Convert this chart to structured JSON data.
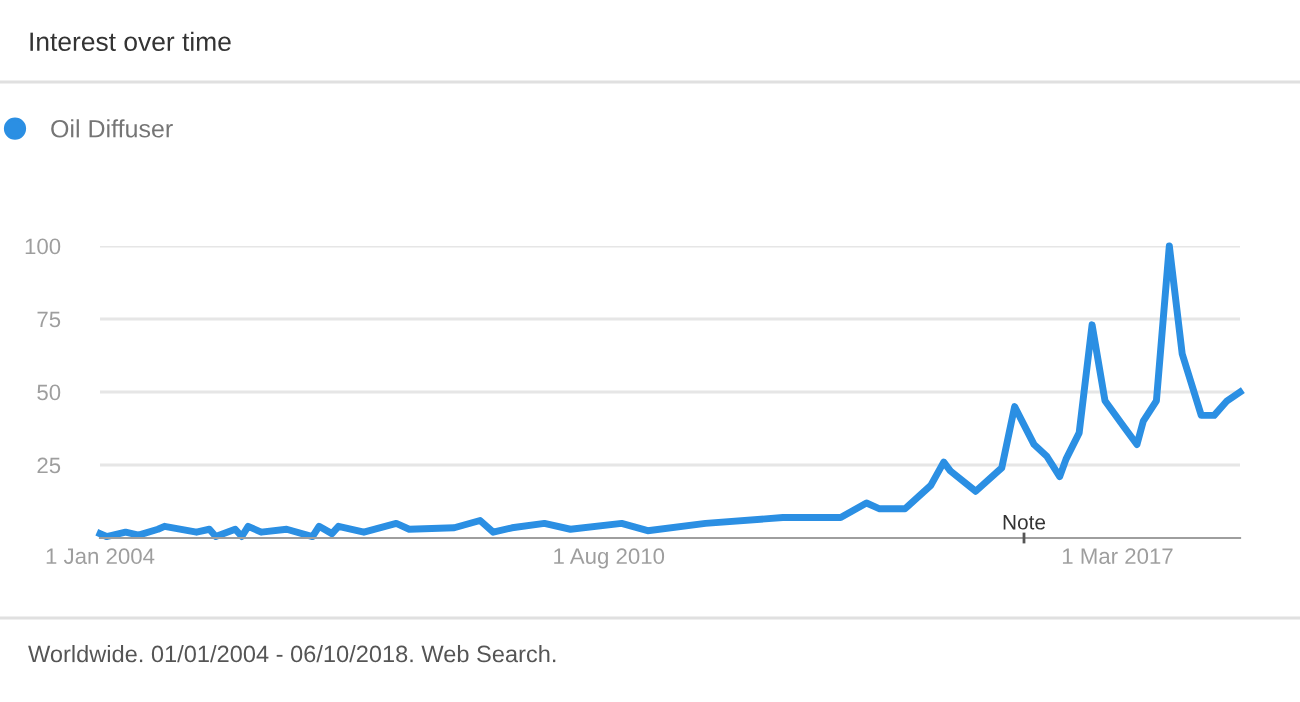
{
  "chart_data": {
    "type": "line",
    "title": "Interest over time",
    "x": [
      "2004-01",
      "2004-02",
      "2004-05",
      "2004-07",
      "2004-10",
      "2004-11",
      "2005-04",
      "2005-06",
      "2005-07",
      "2005-10",
      "2005-11",
      "2005-12",
      "2006-02",
      "2006-06",
      "2006-10",
      "2006-11",
      "2007-01",
      "2007-02",
      "2007-06",
      "2007-11",
      "2008-01",
      "2008-08",
      "2008-12",
      "2009-02",
      "2009-05",
      "2009-10",
      "2010-02",
      "2010-10",
      "2011-02",
      "2011-11",
      "2012-11",
      "2013-08",
      "2013-12",
      "2014-02",
      "2014-06",
      "2014-10",
      "2014-12",
      "2015-01",
      "2015-05",
      "2015-09",
      "2015-11",
      "2016-02",
      "2016-04",
      "2016-06",
      "2016-07",
      "2016-09",
      "2016-11",
      "2017-01",
      "2017-04",
      "2017-06",
      "2017-07",
      "2017-09",
      "2017-11",
      "2018-01",
      "2018-04",
      "2018-06",
      "2018-08",
      "2018-10"
    ],
    "series": [
      {
        "name": "Oil Diffuser",
        "color": "#2b8fe3",
        "values": [
          1.5,
          0.5,
          2,
          1,
          3,
          4,
          2,
          3,
          0.5,
          3,
          0.5,
          4,
          2,
          3,
          0.5,
          4,
          1.5,
          4,
          2,
          5,
          3,
          3.5,
          6,
          2,
          3.5,
          5,
          3,
          5,
          2.5,
          5,
          7,
          7,
          12,
          10,
          10,
          18,
          26,
          23,
          16,
          24,
          45,
          32,
          28,
          21,
          27,
          36,
          73,
          47,
          38,
          32,
          40,
          47,
          100,
          63,
          42,
          42,
          47,
          50
        ]
      }
    ],
    "xlim": [
      "2004-01",
      "2018-10"
    ],
    "xticks": [
      {
        "value": "2004-01-01",
        "label": "1 Jan 2004"
      },
      {
        "value": "2010-08-01",
        "label": "1 Aug 2010"
      },
      {
        "value": "2017-03-01",
        "label": "1 Mar 2017"
      }
    ],
    "ylim": [
      0,
      100
    ],
    "yticks": [
      25,
      50,
      75,
      100
    ],
    "grid": "y",
    "legend": "top left",
    "annotations": [
      "Note",
      "Worldwide. 01/01/2004 - 06/10/2018. Web Search."
    ]
  }
}
